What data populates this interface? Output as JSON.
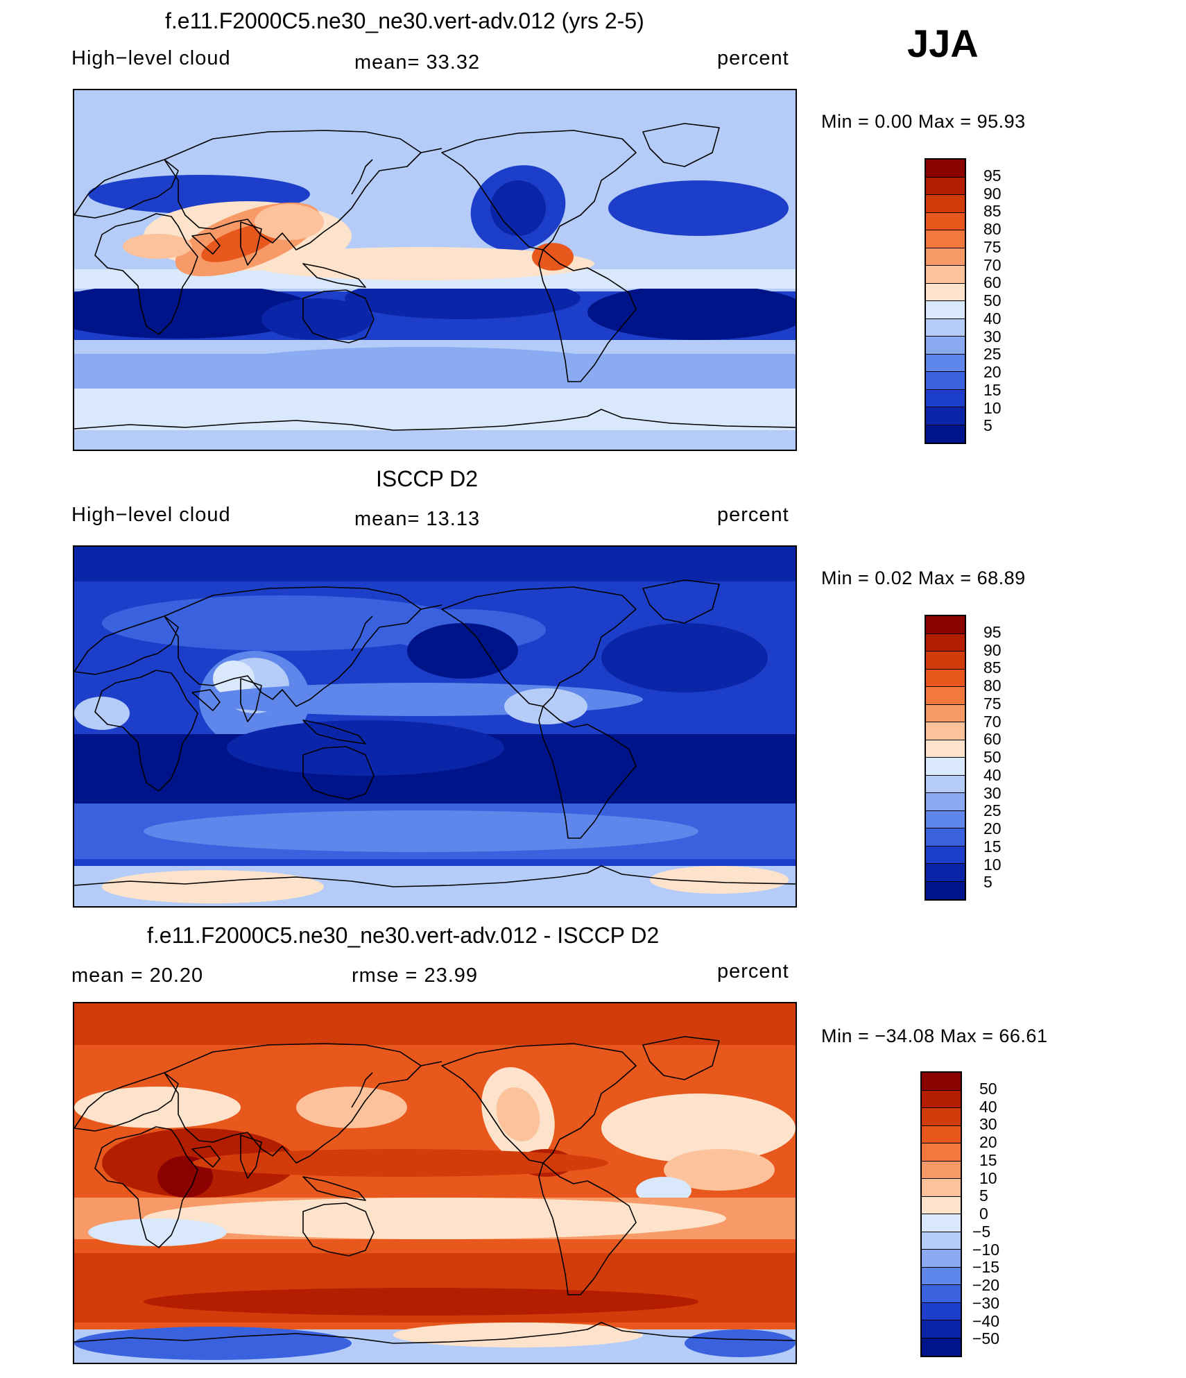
{
  "season": "JJA",
  "panels": [
    {
      "title": "f.e11.F2000C5.ne30_ne30.vert-adv.012 (yrs 2-5)",
      "left": "High−level cloud",
      "center": "mean=   33.32",
      "right": "percent",
      "minmax": "Min =    0.00 Max =   95.93",
      "levels": [
        "95",
        "90",
        "85",
        "80",
        "75",
        "70",
        "60",
        "50",
        "40",
        "30",
        "25",
        "20",
        "15",
        "10",
        "5"
      ],
      "colors": [
        "#8b0000",
        "#b41e00",
        "#d23c0a",
        "#e8571c",
        "#f3783e",
        "#f89a68",
        "#fbc29c",
        "#fde3cb",
        "#d9e8fb",
        "#b4ccf7",
        "#8aaaf2",
        "#5f86ea",
        "#3a62de",
        "#1d3ec9",
        "#0b25a8",
        "#00148a"
      ],
      "style": "model"
    },
    {
      "title": "ISCCP D2",
      "left": "High−level cloud",
      "center": "mean=   13.13",
      "right": "percent",
      "minmax": "Min =    0.02 Max =   68.89",
      "levels": [
        "95",
        "90",
        "85",
        "80",
        "75",
        "70",
        "60",
        "50",
        "40",
        "30",
        "25",
        "20",
        "15",
        "10",
        "5"
      ],
      "colors": [
        "#8b0000",
        "#b41e00",
        "#d23c0a",
        "#e8571c",
        "#f3783e",
        "#f89a68",
        "#fbc29c",
        "#fde3cb",
        "#d9e8fb",
        "#b4ccf7",
        "#8aaaf2",
        "#5f86ea",
        "#3a62de",
        "#1d3ec9",
        "#0b25a8",
        "#00148a"
      ],
      "style": "obs"
    },
    {
      "title": "f.e11.F2000C5.ne30_ne30.vert-adv.012 - ISCCP D2",
      "left": "mean =   20.20",
      "center": "rmse =   23.99",
      "right": "percent",
      "minmax": "Min = −34.08 Max =   66.61",
      "levels": [
        "50",
        "40",
        "30",
        "20",
        "15",
        "10",
        "5",
        "0",
        "−5",
        "−10",
        "−15",
        "−20",
        "−30",
        "−40",
        "−50"
      ],
      "colors": [
        "#8b0000",
        "#b41e00",
        "#d23c0a",
        "#e8571c",
        "#f3783e",
        "#f89a68",
        "#fbc29c",
        "#fde3cb",
        "#d9e8fb",
        "#b4ccf7",
        "#8aaaf2",
        "#5f86ea",
        "#3a62de",
        "#1d3ec9",
        "#0b25a8",
        "#00148a"
      ],
      "style": "diff"
    }
  ]
}
